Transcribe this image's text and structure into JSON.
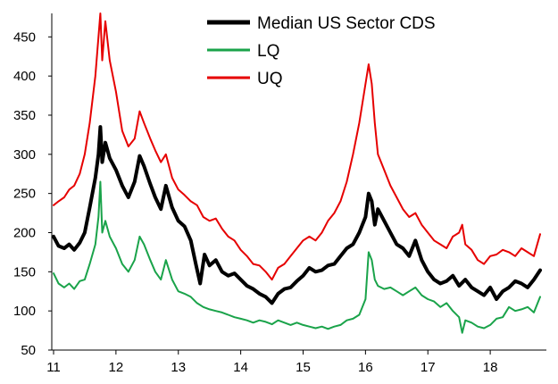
{
  "chart_data": {
    "type": "line",
    "title": "",
    "xlabel": "",
    "ylabel": "",
    "xlim": [
      11,
      18.9
    ],
    "ylim": [
      50,
      480
    ],
    "grid": false,
    "legend_position": "top-right",
    "x_ticks": [
      11,
      12,
      13,
      14,
      15,
      16,
      17,
      18
    ],
    "x_tick_labels": [
      "11",
      "12",
      "13",
      "14",
      "15",
      "16",
      "17",
      "18"
    ],
    "y_ticks": [
      50,
      100,
      150,
      200,
      250,
      300,
      350,
      400,
      450
    ],
    "y_tick_labels": [
      "50",
      "100",
      "150",
      "200",
      "250",
      "300",
      "350",
      "400",
      "450"
    ],
    "series": [
      {
        "name": "Median US Sector CDS",
        "color": "#000000",
        "line_width": 4,
        "points": [
          [
            11.0,
            195
          ],
          [
            11.08,
            183
          ],
          [
            11.17,
            180
          ],
          [
            11.25,
            185
          ],
          [
            11.33,
            178
          ],
          [
            11.42,
            187
          ],
          [
            11.5,
            200
          ],
          [
            11.58,
            232
          ],
          [
            11.67,
            270
          ],
          [
            11.72,
            300
          ],
          [
            11.75,
            335
          ],
          [
            11.78,
            290
          ],
          [
            11.83,
            315
          ],
          [
            11.9,
            295
          ],
          [
            12.0,
            280
          ],
          [
            12.1,
            260
          ],
          [
            12.2,
            245
          ],
          [
            12.3,
            265
          ],
          [
            12.38,
            298
          ],
          [
            12.45,
            285
          ],
          [
            12.55,
            262
          ],
          [
            12.63,
            245
          ],
          [
            12.72,
            230
          ],
          [
            12.8,
            260
          ],
          [
            12.9,
            232
          ],
          [
            13.0,
            215
          ],
          [
            13.1,
            208
          ],
          [
            13.2,
            190
          ],
          [
            13.28,
            160
          ],
          [
            13.35,
            135
          ],
          [
            13.42,
            172
          ],
          [
            13.5,
            158
          ],
          [
            13.6,
            165
          ],
          [
            13.7,
            150
          ],
          [
            13.8,
            145
          ],
          [
            13.9,
            148
          ],
          [
            14.0,
            140
          ],
          [
            14.1,
            132
          ],
          [
            14.2,
            128
          ],
          [
            14.3,
            122
          ],
          [
            14.4,
            118
          ],
          [
            14.5,
            110
          ],
          [
            14.6,
            122
          ],
          [
            14.7,
            128
          ],
          [
            14.8,
            130
          ],
          [
            14.9,
            138
          ],
          [
            15.0,
            145
          ],
          [
            15.1,
            155
          ],
          [
            15.2,
            150
          ],
          [
            15.3,
            152
          ],
          [
            15.4,
            158
          ],
          [
            15.5,
            160
          ],
          [
            15.6,
            170
          ],
          [
            15.7,
            180
          ],
          [
            15.8,
            185
          ],
          [
            15.9,
            200
          ],
          [
            16.0,
            220
          ],
          [
            16.05,
            250
          ],
          [
            16.1,
            240
          ],
          [
            16.15,
            210
          ],
          [
            16.2,
            230
          ],
          [
            16.3,
            215
          ],
          [
            16.4,
            200
          ],
          [
            16.5,
            185
          ],
          [
            16.6,
            180
          ],
          [
            16.7,
            170
          ],
          [
            16.8,
            190
          ],
          [
            16.9,
            165
          ],
          [
            17.0,
            150
          ],
          [
            17.1,
            140
          ],
          [
            17.2,
            135
          ],
          [
            17.3,
            138
          ],
          [
            17.4,
            145
          ],
          [
            17.5,
            132
          ],
          [
            17.6,
            140
          ],
          [
            17.7,
            130
          ],
          [
            17.8,
            125
          ],
          [
            17.9,
            120
          ],
          [
            18.0,
            130
          ],
          [
            18.1,
            115
          ],
          [
            18.2,
            125
          ],
          [
            18.3,
            130
          ],
          [
            18.4,
            138
          ],
          [
            18.5,
            135
          ],
          [
            18.6,
            130
          ],
          [
            18.7,
            140
          ],
          [
            18.8,
            152
          ]
        ]
      },
      {
        "name": "LQ",
        "color": "#1aa34a",
        "line_width": 2,
        "points": [
          [
            11.0,
            148
          ],
          [
            11.08,
            135
          ],
          [
            11.17,
            130
          ],
          [
            11.25,
            135
          ],
          [
            11.33,
            128
          ],
          [
            11.42,
            138
          ],
          [
            11.5,
            140
          ],
          [
            11.58,
            160
          ],
          [
            11.67,
            185
          ],
          [
            11.72,
            220
          ],
          [
            11.75,
            265
          ],
          [
            11.78,
            200
          ],
          [
            11.83,
            215
          ],
          [
            11.9,
            195
          ],
          [
            12.0,
            180
          ],
          [
            12.1,
            160
          ],
          [
            12.2,
            150
          ],
          [
            12.3,
            165
          ],
          [
            12.38,
            195
          ],
          [
            12.45,
            185
          ],
          [
            12.55,
            165
          ],
          [
            12.63,
            150
          ],
          [
            12.72,
            140
          ],
          [
            12.8,
            165
          ],
          [
            12.9,
            140
          ],
          [
            13.0,
            125
          ],
          [
            13.1,
            122
          ],
          [
            13.2,
            118
          ],
          [
            13.3,
            110
          ],
          [
            13.4,
            105
          ],
          [
            13.5,
            102
          ],
          [
            13.6,
            100
          ],
          [
            13.7,
            98
          ],
          [
            13.8,
            95
          ],
          [
            13.9,
            92
          ],
          [
            14.0,
            90
          ],
          [
            14.1,
            88
          ],
          [
            14.2,
            85
          ],
          [
            14.3,
            88
          ],
          [
            14.4,
            86
          ],
          [
            14.5,
            83
          ],
          [
            14.6,
            88
          ],
          [
            14.7,
            85
          ],
          [
            14.8,
            82
          ],
          [
            14.9,
            85
          ],
          [
            15.0,
            82
          ],
          [
            15.1,
            80
          ],
          [
            15.2,
            78
          ],
          [
            15.3,
            80
          ],
          [
            15.4,
            77
          ],
          [
            15.5,
            80
          ],
          [
            15.6,
            82
          ],
          [
            15.7,
            88
          ],
          [
            15.8,
            90
          ],
          [
            15.9,
            95
          ],
          [
            16.0,
            115
          ],
          [
            16.05,
            175
          ],
          [
            16.1,
            165
          ],
          [
            16.15,
            140
          ],
          [
            16.2,
            132
          ],
          [
            16.3,
            128
          ],
          [
            16.4,
            130
          ],
          [
            16.5,
            125
          ],
          [
            16.6,
            120
          ],
          [
            16.7,
            125
          ],
          [
            16.8,
            130
          ],
          [
            16.9,
            120
          ],
          [
            17.0,
            115
          ],
          [
            17.1,
            112
          ],
          [
            17.2,
            105
          ],
          [
            17.3,
            110
          ],
          [
            17.4,
            100
          ],
          [
            17.5,
            92
          ],
          [
            17.55,
            72
          ],
          [
            17.6,
            88
          ],
          [
            17.7,
            85
          ],
          [
            17.8,
            80
          ],
          [
            17.9,
            78
          ],
          [
            18.0,
            82
          ],
          [
            18.1,
            90
          ],
          [
            18.2,
            92
          ],
          [
            18.3,
            105
          ],
          [
            18.4,
            100
          ],
          [
            18.5,
            102
          ],
          [
            18.6,
            105
          ],
          [
            18.7,
            98
          ],
          [
            18.8,
            118
          ]
        ]
      },
      {
        "name": "UQ",
        "color": "#e60000",
        "line_width": 2,
        "points": [
          [
            11.0,
            235
          ],
          [
            11.08,
            240
          ],
          [
            11.17,
            245
          ],
          [
            11.25,
            255
          ],
          [
            11.33,
            260
          ],
          [
            11.42,
            275
          ],
          [
            11.5,
            300
          ],
          [
            11.58,
            340
          ],
          [
            11.67,
            400
          ],
          [
            11.72,
            450
          ],
          [
            11.75,
            480
          ],
          [
            11.78,
            420
          ],
          [
            11.83,
            470
          ],
          [
            11.9,
            420
          ],
          [
            12.0,
            380
          ],
          [
            12.1,
            330
          ],
          [
            12.2,
            310
          ],
          [
            12.3,
            320
          ],
          [
            12.38,
            355
          ],
          [
            12.45,
            340
          ],
          [
            12.55,
            320
          ],
          [
            12.63,
            305
          ],
          [
            12.72,
            290
          ],
          [
            12.8,
            300
          ],
          [
            12.9,
            270
          ],
          [
            13.0,
            255
          ],
          [
            13.1,
            248
          ],
          [
            13.2,
            240
          ],
          [
            13.3,
            235
          ],
          [
            13.4,
            220
          ],
          [
            13.5,
            215
          ],
          [
            13.6,
            218
          ],
          [
            13.7,
            205
          ],
          [
            13.8,
            195
          ],
          [
            13.9,
            190
          ],
          [
            14.0,
            178
          ],
          [
            14.1,
            170
          ],
          [
            14.2,
            160
          ],
          [
            14.3,
            158
          ],
          [
            14.4,
            150
          ],
          [
            14.5,
            140
          ],
          [
            14.6,
            155
          ],
          [
            14.7,
            160
          ],
          [
            14.8,
            170
          ],
          [
            14.9,
            180
          ],
          [
            15.0,
            190
          ],
          [
            15.1,
            195
          ],
          [
            15.2,
            190
          ],
          [
            15.3,
            200
          ],
          [
            15.4,
            215
          ],
          [
            15.5,
            225
          ],
          [
            15.6,
            240
          ],
          [
            15.7,
            265
          ],
          [
            15.8,
            300
          ],
          [
            15.9,
            340
          ],
          [
            16.0,
            390
          ],
          [
            16.05,
            415
          ],
          [
            16.1,
            390
          ],
          [
            16.15,
            340
          ],
          [
            16.2,
            300
          ],
          [
            16.3,
            280
          ],
          [
            16.4,
            260
          ],
          [
            16.5,
            245
          ],
          [
            16.6,
            230
          ],
          [
            16.7,
            220
          ],
          [
            16.8,
            225
          ],
          [
            16.9,
            210
          ],
          [
            17.0,
            200
          ],
          [
            17.1,
            190
          ],
          [
            17.2,
            185
          ],
          [
            17.3,
            180
          ],
          [
            17.4,
            195
          ],
          [
            17.5,
            200
          ],
          [
            17.55,
            210
          ],
          [
            17.6,
            185
          ],
          [
            17.7,
            178
          ],
          [
            17.8,
            165
          ],
          [
            17.9,
            160
          ],
          [
            18.0,
            170
          ],
          [
            18.1,
            172
          ],
          [
            18.2,
            178
          ],
          [
            18.3,
            175
          ],
          [
            18.4,
            170
          ],
          [
            18.5,
            180
          ],
          [
            18.6,
            175
          ],
          [
            18.7,
            170
          ],
          [
            18.8,
            198
          ]
        ]
      }
    ]
  }
}
